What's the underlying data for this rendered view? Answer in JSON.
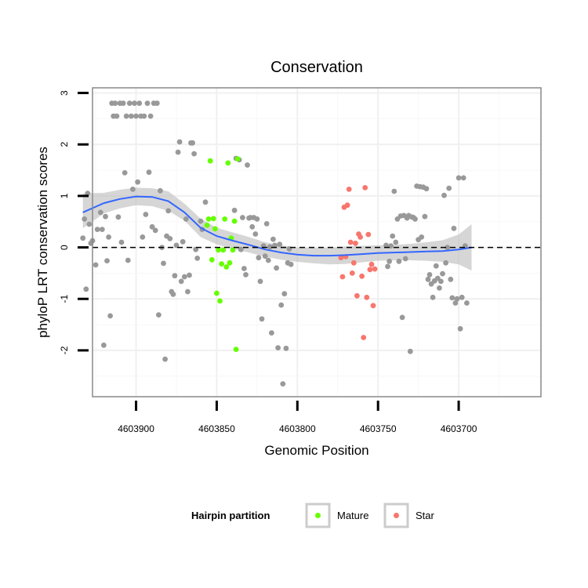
{
  "chart_data": {
    "type": "scatter",
    "title": "Conservation",
    "xlabel": "Genomic Position",
    "ylabel": "phyloP LRT conservation scores",
    "x_reversed": true,
    "xlim": [
      4603927,
      4603649
    ],
    "ylim": [
      -2.9,
      3.1
    ],
    "x_ticks": [
      4603900,
      4603850,
      4603800,
      4603750,
      4603700
    ],
    "x_tick_labels": [
      "4603900",
      "4603850",
      "4603800",
      "4603750",
      "4603700"
    ],
    "y_ticks": [
      3,
      2,
      1,
      0,
      -1,
      -2
    ],
    "y_tick_labels": [
      "3",
      "2",
      "1",
      "0",
      "-1",
      "-2"
    ],
    "grid": true,
    "reference_line": {
      "y": 0,
      "style": "dashed",
      "color": "#000000"
    },
    "colors": {
      "Other": "#999999",
      "Mature": "#66FF00",
      "Star": "#F8766D",
      "smooth": "#3366FF",
      "ribbon": "#BBBBBB"
    },
    "legend": {
      "title": "Hairpin partition",
      "position": "bottom",
      "entries": [
        {
          "label": "Mature",
          "color": "#66FF00"
        },
        {
          "label": "Star",
          "color": "#F8766D"
        }
      ]
    },
    "series": [
      {
        "name": "Other",
        "points": [
          [
            4603933,
            0.18
          ],
          [
            4603932,
            0.55
          ],
          [
            4603931,
            -0.81
          ],
          [
            4603930,
            1.05
          ],
          [
            4603929,
            0.45
          ],
          [
            4603928,
            0.08
          ],
          [
            4603927,
            0.13
          ],
          [
            4603925,
            -0.34
          ],
          [
            4603924,
            0.35
          ],
          [
            4603922,
            0.68
          ],
          [
            4603921,
            0.35
          ],
          [
            4603920,
            -1.9
          ],
          [
            4603919,
            0.6
          ],
          [
            4603918,
            -0.26
          ],
          [
            4603917,
            0.2
          ],
          [
            4603916,
            -1.33
          ],
          [
            4603915,
            2.8
          ],
          [
            4603914,
            2.55
          ],
          [
            4603913,
            2.8
          ],
          [
            4603912,
            2.55
          ],
          [
            4603911,
            0.59
          ],
          [
            4603910,
            2.8
          ],
          [
            4603909,
            0.1
          ],
          [
            4603908,
            2.8
          ],
          [
            4603907,
            1.45
          ],
          [
            4603906,
            2.55
          ],
          [
            4603905,
            -0.25
          ],
          [
            4603904,
            2.8
          ],
          [
            4603903,
            2.55
          ],
          [
            4603902,
            1.13
          ],
          [
            4603901,
            2.8
          ],
          [
            4603900,
            2.55
          ],
          [
            4603899,
            1.27
          ],
          [
            4603898,
            2.8
          ],
          [
            4603897,
            2.55
          ],
          [
            4603896,
            0.2
          ],
          [
            4603895,
            2.55
          ],
          [
            4603894,
            0.64
          ],
          [
            4603893,
            2.8
          ],
          [
            4603892,
            1.46
          ],
          [
            4603891,
            2.55
          ],
          [
            4603890,
            0.4
          ],
          [
            4603889,
            2.8
          ],
          [
            4603888,
            0.33
          ],
          [
            4603887,
            2.8
          ],
          [
            4603886,
            -1.31
          ],
          [
            4603885,
            1.1
          ],
          [
            4603884,
            0.0
          ],
          [
            4603883,
            -0.31
          ],
          [
            4603882,
            -2.17
          ],
          [
            4603881,
            0.22
          ],
          [
            4603880,
            0.71
          ],
          [
            4603879,
            0.17
          ],
          [
            4603878,
            -0.86
          ],
          [
            4603877,
            -0.91
          ],
          [
            4603876,
            -0.55
          ],
          [
            4603875,
            0.04
          ],
          [
            4603874,
            1.85
          ],
          [
            4603873,
            2.05
          ],
          [
            4603872,
            -0.66
          ],
          [
            4603871,
            0.11
          ],
          [
            4603870,
            -0.57
          ],
          [
            4603869,
            0.55
          ],
          [
            4603868,
            -0.86
          ],
          [
            4603867,
            -0.54
          ],
          [
            4603866,
            2.03
          ],
          [
            4603865,
            2.03
          ],
          [
            4603864,
            1.82
          ],
          [
            4603863,
            -0.04
          ],
          [
            4603862,
            -0.21
          ]
        ]
      },
      {
        "name": "Other",
        "points": [
          [
            4603860,
            0.51
          ],
          [
            4603859,
            0.35
          ],
          [
            4603857,
            0.88
          ],
          [
            4603839,
            0.72
          ],
          [
            4603838,
            1.73
          ],
          [
            4603836,
            1.7
          ],
          [
            4603835,
            -0.04
          ],
          [
            4603834,
            0.58
          ],
          [
            4603833,
            -0.41
          ],
          [
            4603832,
            -0.53
          ],
          [
            4603831,
            1.6
          ],
          [
            4603830,
            0.57
          ],
          [
            4603829,
            0.58
          ],
          [
            4603828,
            0.4
          ],
          [
            4603827,
            0.58
          ],
          [
            4603826,
            0.26
          ],
          [
            4603825,
            0.55
          ],
          [
            4603824,
            -0.2
          ],
          [
            4603823,
            -0.66
          ],
          [
            4603822,
            -1.39
          ],
          [
            4603821,
            0.03
          ],
          [
            4603820,
            -0.17
          ],
          [
            4603819,
            0.46
          ],
          [
            4603818,
            -0.25
          ],
          [
            4603817,
            0.01
          ],
          [
            4603816,
            -1.66
          ],
          [
            4603815,
            0.16
          ],
          [
            4603814,
            0.04
          ],
          [
            4603813,
            -0.4
          ],
          [
            4603812,
            -1.95
          ],
          [
            4603811,
            0.06
          ],
          [
            4603810,
            -1.12
          ],
          [
            4603809,
            -2.65
          ],
          [
            4603808,
            -0.9
          ],
          [
            4603807,
            -1.96
          ],
          [
            4603806,
            -0.3
          ],
          [
            4603805,
            -0.03
          ],
          [
            4603804,
            -0.33
          ]
        ]
      },
      {
        "name": "Other",
        "points": [
          [
            4603745,
            0.04
          ],
          [
            4603744,
            -0.37
          ],
          [
            4603743,
            -0.27
          ],
          [
            4603742,
            0.03
          ],
          [
            4603741,
            0.22
          ],
          [
            4603740,
            1.09
          ],
          [
            4603739,
            0.1
          ],
          [
            4603738,
            0.55
          ],
          [
            4603737,
            -0.27
          ],
          [
            4603736,
            0.61
          ],
          [
            4603735,
            -1.36
          ],
          [
            4603734,
            0.62
          ],
          [
            4603733,
            -0.22
          ],
          [
            4603732,
            0.57
          ],
          [
            4603731,
            0.62
          ],
          [
            4603730,
            -2.02
          ],
          [
            4603729,
            0.59
          ],
          [
            4603728,
            0.58
          ],
          [
            4603727,
            0.55
          ],
          [
            4603726,
            1.19
          ],
          [
            4603725,
            0.15
          ],
          [
            4603724,
            1.18
          ],
          [
            4603723,
            0.2
          ],
          [
            4603722,
            1.17
          ],
          [
            4603721,
            0.6
          ],
          [
            4603720,
            1.14
          ],
          [
            4603719,
            -0.62
          ],
          [
            4603718,
            -0.53
          ],
          [
            4603717,
            -0.71
          ],
          [
            4603716,
            -0.97
          ],
          [
            4603715,
            -0.65
          ],
          [
            4603714,
            -0.36
          ],
          [
            4603713,
            -0.6
          ],
          [
            4603712,
            -0.79
          ],
          [
            4603711,
            -0.66
          ],
          [
            4603710,
            -0.51
          ],
          [
            4603709,
            1.01
          ],
          [
            4603708,
            -0.3
          ],
          [
            4603707,
            0.0
          ],
          [
            4603706,
            1.15
          ],
          [
            4603705,
            -0.62
          ],
          [
            4603704,
            -0.98
          ],
          [
            4603703,
            0.37
          ],
          [
            4603702,
            -1.08
          ],
          [
            4603701,
            -1.0
          ],
          [
            4603700,
            1.35
          ],
          [
            4603699,
            -1.58
          ],
          [
            4603698,
            -0.97
          ],
          [
            4603697,
            1.35
          ],
          [
            4603696,
            0.03
          ],
          [
            4603695,
            -1.08
          ]
        ]
      },
      {
        "name": "Mature",
        "points": [
          [
            4603856,
            0.43
          ],
          [
            4603855,
            0.55
          ],
          [
            4603854,
            1.68
          ],
          [
            4603853,
            -0.24
          ],
          [
            4603852,
            0.56
          ],
          [
            4603851,
            0.36
          ],
          [
            4603850,
            -0.89
          ],
          [
            4603849,
            -0.05
          ],
          [
            4603848,
            -1.04
          ],
          [
            4603847,
            -0.32
          ],
          [
            4603846,
            -0.05
          ],
          [
            4603845,
            0.55
          ],
          [
            4603844,
            -0.38
          ],
          [
            4603843,
            1.64
          ],
          [
            4603842,
            -0.3
          ],
          [
            4603841,
            0.18
          ],
          [
            4603840,
            -0.05
          ],
          [
            4603839,
            0.51
          ],
          [
            4603838,
            -1.98
          ],
          [
            4603837,
            1.72
          ]
        ]
      },
      {
        "name": "Star",
        "points": [
          [
            4603773,
            -0.2
          ],
          [
            4603772,
            -0.57
          ],
          [
            4603771,
            0.78
          ],
          [
            4603770,
            -0.18
          ],
          [
            4603769,
            0.82
          ],
          [
            4603768,
            1.13
          ],
          [
            4603767,
            0.1
          ],
          [
            4603766,
            -0.5
          ],
          [
            4603765,
            -0.3
          ],
          [
            4603764,
            0.08
          ],
          [
            4603763,
            -0.94
          ],
          [
            4603762,
            0.26
          ],
          [
            4603761,
            0.2
          ],
          [
            4603760,
            -0.56
          ],
          [
            4603759,
            -1.75
          ],
          [
            4603758,
            1.16
          ],
          [
            4603757,
            -0.97
          ],
          [
            4603756,
            0.25
          ],
          [
            4603755,
            -0.43
          ],
          [
            4603754,
            -0.33
          ],
          [
            4603753,
            -1.13
          ],
          [
            4603752,
            -0.42
          ]
        ]
      }
    ],
    "smooth": {
      "x": [
        4603933,
        4603920,
        4603910,
        4603900,
        4603890,
        4603880,
        4603870,
        4603860,
        4603850,
        4603840,
        4603830,
        4603820,
        4603810,
        4603800,
        4603790,
        4603780,
        4603770,
        4603760,
        4603750,
        4603740,
        4603730,
        4603720,
        4603710,
        4603700,
        4603692
      ],
      "y": [
        0.68,
        0.86,
        0.94,
        0.99,
        0.98,
        0.9,
        0.68,
        0.38,
        0.22,
        0.13,
        0.05,
        -0.04,
        -0.1,
        -0.14,
        -0.16,
        -0.16,
        -0.15,
        -0.13,
        -0.11,
        -0.1,
        -0.09,
        -0.08,
        -0.07,
        -0.04,
        0.0
      ],
      "lower": [
        0.37,
        0.66,
        0.76,
        0.82,
        0.8,
        0.71,
        0.52,
        0.2,
        0.06,
        -0.03,
        -0.1,
        -0.18,
        -0.24,
        -0.28,
        -0.31,
        -0.33,
        -0.32,
        -0.29,
        -0.26,
        -0.25,
        -0.25,
        -0.26,
        -0.28,
        -0.33,
        -0.45
      ],
      "upper": [
        1.05,
        1.06,
        1.12,
        1.16,
        1.15,
        1.09,
        0.85,
        0.56,
        0.38,
        0.29,
        0.2,
        0.1,
        0.04,
        0.0,
        -0.01,
        -0.01,
        0.02,
        0.03,
        0.04,
        0.05,
        0.07,
        0.1,
        0.14,
        0.25,
        0.45
      ]
    }
  }
}
